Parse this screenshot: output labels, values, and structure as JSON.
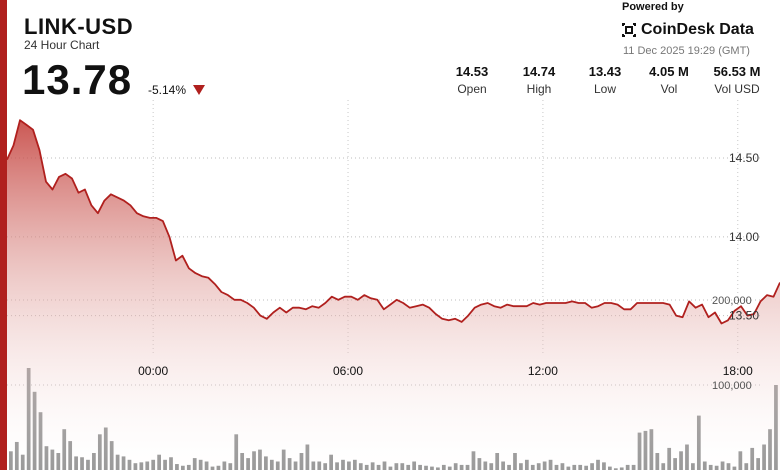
{
  "header": {
    "pair": "LINK-USD",
    "subtitle": "24 Hour Chart",
    "price": "13.78",
    "change": "-5.14%",
    "powered_by": "Powered by",
    "brand": "CoinDesk Data",
    "timestamp": "11 Dec 2025 19:29 (GMT)"
  },
  "stats": [
    {
      "value": "14.53",
      "label": "Open"
    },
    {
      "value": "14.74",
      "label": "High"
    },
    {
      "value": "13.43",
      "label": "Low"
    },
    {
      "value": "4.05 M",
      "label": "Vol"
    },
    {
      "value": "56.53 M",
      "label": "Vol USD"
    }
  ],
  "colors": {
    "accent": "#b0201e",
    "line": "#b0201e",
    "volume_bar": "#8f8f8f"
  },
  "chart_data": {
    "type": "area",
    "x_tick_labels": [
      "00:00",
      "06:00",
      "12:00",
      "18:00"
    ],
    "x_tick_hours": [
      0,
      6,
      12,
      18
    ],
    "x_range_hours": [
      -4.5,
      19.3
    ],
    "price_ticks": [
      13.5,
      14.0,
      14.5
    ],
    "price_tick_labels": [
      "13.50",
      "14.00",
      "14.50"
    ],
    "price_range": [
      13.25,
      14.9
    ],
    "volume_ticks": [
      100000,
      200000
    ],
    "volume_tick_labels": [
      "100,000",
      "200,000"
    ],
    "volume_range": [
      0,
      200000
    ],
    "grid": true,
    "price_series": {
      "name": "Price",
      "x": [
        -4.5,
        -4.3,
        -4.1,
        -3.9,
        -3.7,
        -3.5,
        -3.3,
        -3.1,
        -2.9,
        -2.7,
        -2.5,
        -2.3,
        -2.1,
        -1.9,
        -1.7,
        -1.5,
        -1.3,
        -1.1,
        -0.9,
        -0.7,
        -0.5,
        -0.3,
        -0.1,
        0.1,
        0.3,
        0.5,
        0.7,
        0.9,
        1.1,
        1.3,
        1.5,
        1.7,
        1.9,
        2.1,
        2.3,
        2.5,
        2.7,
        2.9,
        3.1,
        3.3,
        3.5,
        3.7,
        3.9,
        4.1,
        4.3,
        4.5,
        4.7,
        4.9,
        5.1,
        5.3,
        5.5,
        5.7,
        5.9,
        6.1,
        6.3,
        6.5,
        6.7,
        6.9,
        7.1,
        7.3,
        7.5,
        7.7,
        7.9,
        8.1,
        8.3,
        8.5,
        8.7,
        8.9,
        9.1,
        9.3,
        9.5,
        9.7,
        9.9,
        10.1,
        10.3,
        10.5,
        10.7,
        10.9,
        11.1,
        11.3,
        11.5,
        11.7,
        11.9,
        12.1,
        12.3,
        12.5,
        12.7,
        12.9,
        13.1,
        13.3,
        13.5,
        13.7,
        13.9,
        14.1,
        14.3,
        14.5,
        14.7,
        14.9,
        15.1,
        15.3,
        15.5,
        15.7,
        15.9,
        16.1,
        16.3,
        16.5,
        16.7,
        16.9,
        17.1,
        17.3,
        17.5,
        17.7,
        17.9,
        18.1,
        18.3,
        18.5,
        18.7,
        18.9,
        19.1,
        19.3
      ],
      "y": [
        14.49,
        14.58,
        14.74,
        14.71,
        14.68,
        14.55,
        14.35,
        14.3,
        14.38,
        14.4,
        14.37,
        14.28,
        14.3,
        14.2,
        14.15,
        14.23,
        14.27,
        14.25,
        14.23,
        14.2,
        14.15,
        14.13,
        14.12,
        14.12,
        14.1,
        14.0,
        13.85,
        13.88,
        13.8,
        13.77,
        13.75,
        13.74,
        13.7,
        13.65,
        13.63,
        13.6,
        13.6,
        13.58,
        13.55,
        13.5,
        13.48,
        13.52,
        13.55,
        13.52,
        13.55,
        13.55,
        13.54,
        13.56,
        13.55,
        13.58,
        13.62,
        13.6,
        13.62,
        13.62,
        13.6,
        13.63,
        13.61,
        13.6,
        13.54,
        13.57,
        13.6,
        13.58,
        13.55,
        13.56,
        13.57,
        13.55,
        13.51,
        13.48,
        13.47,
        13.48,
        13.46,
        13.5,
        13.55,
        13.57,
        13.58,
        13.56,
        13.55,
        13.57,
        13.56,
        13.56,
        13.56,
        13.58,
        13.57,
        13.58,
        13.58,
        13.58,
        13.58,
        13.59,
        13.58,
        13.58,
        13.55,
        13.56,
        13.58,
        13.58,
        13.57,
        13.54,
        13.54,
        13.58,
        13.58,
        13.58,
        13.58,
        13.58,
        13.57,
        13.5,
        13.49,
        13.59,
        13.55,
        13.57,
        13.49,
        13.52,
        13.45,
        13.47,
        13.53,
        13.56,
        13.5,
        13.51,
        13.59,
        13.63,
        13.62,
        13.71
      ]
    },
    "volume_series": {
      "name": "Volume",
      "values": [
        22000,
        33000,
        18000,
        120000,
        92000,
        68000,
        28000,
        24000,
        20000,
        48000,
        34000,
        16000,
        15000,
        12000,
        20000,
        42000,
        50000,
        34000,
        18000,
        16000,
        12000,
        8000,
        9000,
        10000,
        12000,
        18000,
        12000,
        15000,
        7000,
        5000,
        6000,
        14000,
        12000,
        10000,
        4000,
        5000,
        10000,
        8000,
        42000,
        20000,
        14000,
        22000,
        24000,
        16000,
        12000,
        10000,
        24000,
        14000,
        10000,
        20000,
        30000,
        10000,
        10000,
        8000,
        18000,
        9000,
        12000,
        10000,
        12000,
        8000,
        6000,
        9000,
        6000,
        10000,
        4000,
        8000,
        8000,
        6000,
        10000,
        6000,
        5000,
        4000,
        3000,
        6000,
        4000,
        8000,
        6000,
        6000,
        22000,
        14000,
        10000,
        8000,
        20000,
        10000,
        6000,
        20000,
        8000,
        12000,
        6000,
        8000,
        10000,
        12000,
        6000,
        8000,
        4000,
        6000,
        6000,
        5000,
        8000,
        12000,
        9000,
        4000,
        2000,
        3000,
        6000,
        6000,
        44000,
        46000,
        48000,
        20000,
        8000,
        26000,
        14000,
        22000,
        30000,
        8000,
        64000,
        10000,
        6000,
        5000,
        10000,
        8000,
        4000,
        22000,
        8000,
        26000,
        14000,
        30000,
        48000,
        100000
      ]
    }
  }
}
